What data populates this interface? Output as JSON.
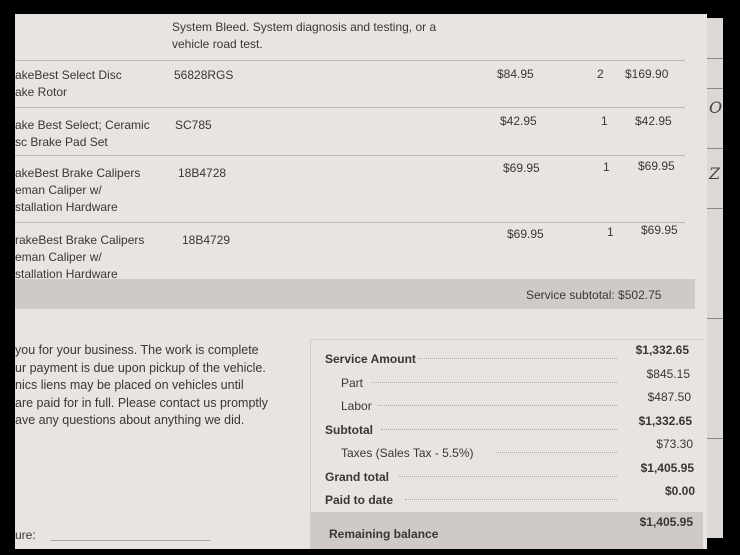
{
  "service_description": [
    "System Bleed. System diagnosis and testing, or a",
    "vehicle road test."
  ],
  "line_items": [
    {
      "name": [
        "akeBest Select Disc",
        "ake Rotor"
      ],
      "part_number": "56828RGS",
      "price": "$84.95",
      "qty": "2",
      "total": "$169.90"
    },
    {
      "name": [
        "ake Best Select; Ceramic",
        "sc Brake Pad Set"
      ],
      "part_number": "SC785",
      "price": "$42.95",
      "qty": "1",
      "total": "$42.95"
    },
    {
      "name": [
        "akeBest Brake Calipers",
        "eman Caliper w/",
        "stallation Hardware"
      ],
      "part_number": "18B4728",
      "price": "$69.95",
      "qty": "1",
      "total": "$69.95"
    },
    {
      "name": [
        "rakeBest Brake Calipers",
        "eman Caliper w/",
        "stallation Hardware"
      ],
      "part_number": "18B4729",
      "price": "$69.95",
      "qty": "1",
      "total": "$69.95"
    }
  ],
  "service_subtotal": "Service subtotal: $502.75",
  "thank_you": [
    "you for your business. The work is complete",
    "ur payment is due upon pickup of the vehicle.",
    "nics liens may be placed on vehicles until",
    "are paid for in full. Please contact us promptly",
    "ave any questions about anything we did."
  ],
  "signature_label": "ure:",
  "summary": [
    {
      "label": "Service Amount",
      "value": "$1,332.65",
      "bold": true
    },
    {
      "label": "Part",
      "value": "$845.15",
      "bold": false
    },
    {
      "label": "Labor",
      "value": "$487.50",
      "bold": false
    },
    {
      "label": "Subtotal",
      "value": "$1,332.65",
      "bold": true
    },
    {
      "label": "Taxes (Sales Tax - 5.5%)",
      "value": "$73.30",
      "bold": false
    },
    {
      "label": "Grand total",
      "value": "$1,405.95",
      "bold": true
    },
    {
      "label": "Paid to date",
      "value": "$0.00",
      "bold": true
    }
  ],
  "remaining_balance": {
    "label": "Remaining balance",
    "value": "$1,405.95"
  },
  "handwriting": [
    "O",
    "Z"
  ]
}
